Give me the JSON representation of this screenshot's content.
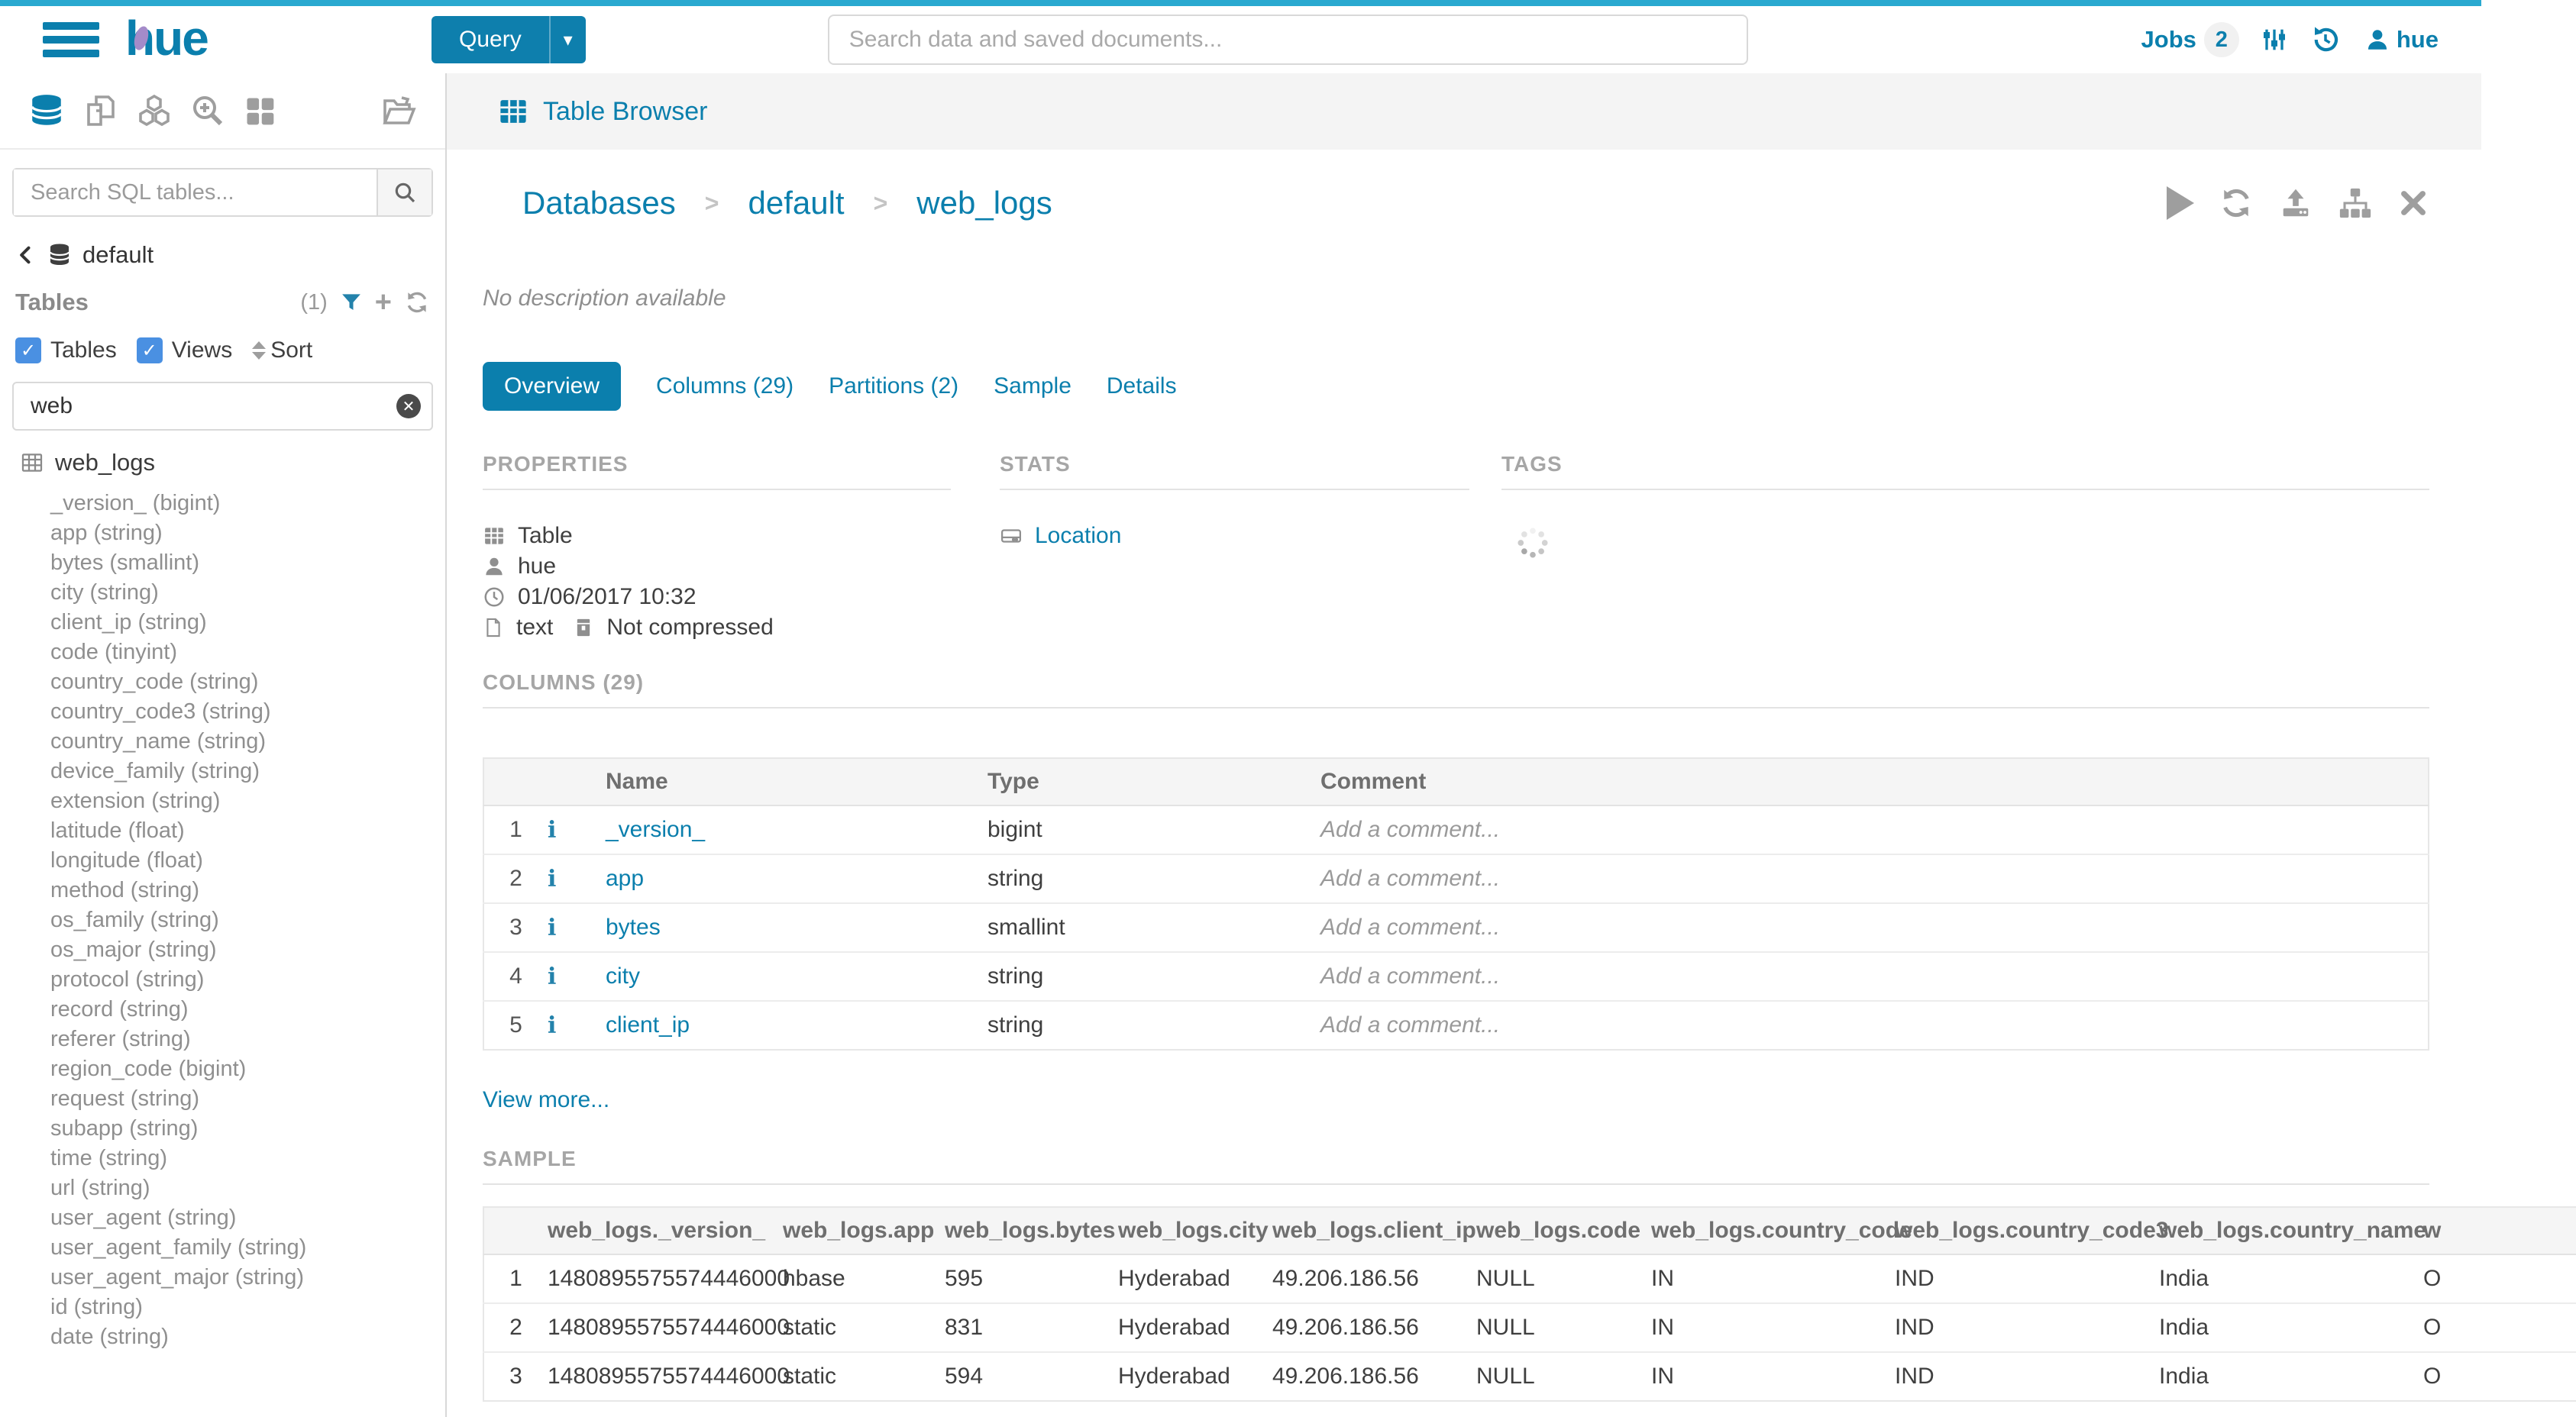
{
  "colors": {
    "accent": "#0B7FAD",
    "top_strip": "#2AA9D0",
    "checkbox_blue": "#4A90E2"
  },
  "topnav": {
    "logo_text": "hue",
    "query_label": "Query",
    "search_placeholder": "Search data and saved documents...",
    "jobs_label": "Jobs",
    "jobs_count": "2",
    "username": "hue"
  },
  "sidebar": {
    "search_placeholder": "Search SQL tables...",
    "database_name": "default",
    "tables_label": "Tables",
    "tables_count": "(1)",
    "filter_tables_label": "Tables",
    "filter_views_label": "Views",
    "sort_label": "Sort",
    "filter_value": "web",
    "table_name": "web_logs",
    "columns": [
      "_version_ (bigint)",
      "app (string)",
      "bytes (smallint)",
      "city (string)",
      "client_ip (string)",
      "code (tinyint)",
      "country_code (string)",
      "country_code3 (string)",
      "country_name (string)",
      "device_family (string)",
      "extension (string)",
      "latitude (float)",
      "longitude (float)",
      "method (string)",
      "os_family (string)",
      "os_major (string)",
      "protocol (string)",
      "record (string)",
      "referer (string)",
      "region_code (bigint)",
      "request (string)",
      "subapp (string)",
      "time (string)",
      "url (string)",
      "user_agent (string)",
      "user_agent_family (string)",
      "user_agent_major (string)",
      "id (string)",
      "date (string)"
    ]
  },
  "main": {
    "app_title": "Table Browser",
    "breadcrumb": [
      "Databases",
      "default",
      "web_logs"
    ],
    "description": "No description available",
    "tabs": [
      {
        "label": "Overview",
        "active": true
      },
      {
        "label": "Columns (29)",
        "active": false
      },
      {
        "label": "Partitions (2)",
        "active": false
      },
      {
        "label": "Sample",
        "active": false
      },
      {
        "label": "Details",
        "active": false
      }
    ],
    "properties": {
      "title": "PROPERTIES",
      "type": "Table",
      "owner": "hue",
      "created": "01/06/2017 10:32",
      "format": "text",
      "compression": "Not compressed"
    },
    "stats": {
      "title": "STATS",
      "location_label": "Location"
    },
    "tags": {
      "title": "TAGS"
    },
    "columns_section": {
      "title": "COLUMNS (29)",
      "headers": [
        "Name",
        "Type",
        "Comment"
      ],
      "rows": [
        {
          "num": "1",
          "name": "_version_",
          "type": "bigint",
          "comment": "Add a comment..."
        },
        {
          "num": "2",
          "name": "app",
          "type": "string",
          "comment": "Add a comment..."
        },
        {
          "num": "3",
          "name": "bytes",
          "type": "smallint",
          "comment": "Add a comment..."
        },
        {
          "num": "4",
          "name": "city",
          "type": "string",
          "comment": "Add a comment..."
        },
        {
          "num": "5",
          "name": "client_ip",
          "type": "string",
          "comment": "Add a comment..."
        }
      ],
      "view_more": "View more..."
    },
    "sample_section": {
      "title": "SAMPLE",
      "headers": [
        "web_logs._version_",
        "web_logs.app",
        "web_logs.bytes",
        "web_logs.city",
        "web_logs.client_ip",
        "web_logs.code",
        "web_logs.country_code",
        "web_logs.country_code3",
        "web_logs.country_name",
        "w"
      ],
      "rows": [
        [
          "1480895575574446000",
          "hbase",
          "595",
          "Hyderabad",
          "49.206.186.56",
          "NULL",
          "IN",
          "IND",
          "India",
          "O"
        ],
        [
          "1480895575574446000",
          "static",
          "831",
          "Hyderabad",
          "49.206.186.56",
          "NULL",
          "IN",
          "IND",
          "India",
          "O"
        ],
        [
          "1480895575574446000",
          "static",
          "594",
          "Hyderabad",
          "49.206.186.56",
          "NULL",
          "IN",
          "IND",
          "India",
          "O"
        ]
      ]
    }
  }
}
